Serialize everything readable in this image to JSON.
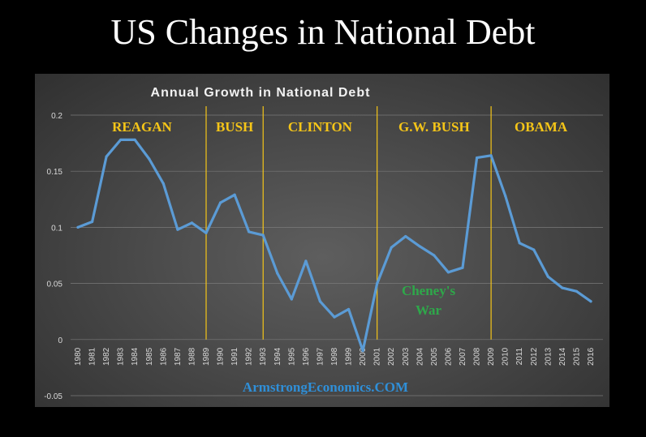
{
  "page": {
    "title": "US Changes in National Debt"
  },
  "chart_data": {
    "type": "line",
    "title": "Annual Growth in National Debt",
    "xlabel": "",
    "ylabel": "",
    "ylim": [
      -0.05,
      0.2
    ],
    "yticks": [
      "-0.05",
      "0",
      "0.05",
      "0.1",
      "0.15",
      "0.2"
    ],
    "x": [
      1980,
      1981,
      1982,
      1983,
      1984,
      1985,
      1986,
      1987,
      1988,
      1989,
      1990,
      1991,
      1992,
      1993,
      1994,
      1995,
      1996,
      1997,
      1998,
      1999,
      2000,
      2001,
      2002,
      2003,
      2004,
      2005,
      2006,
      2007,
      2008,
      2009,
      2010,
      2011,
      2012,
      2013,
      2014,
      2015,
      2016
    ],
    "x_labels": [
      "1980",
      "1981",
      "1982",
      "1983",
      "1984",
      "1985",
      "1986",
      "1987",
      "1988",
      "1989",
      "1990",
      "1991",
      "1992",
      "1993",
      "1994",
      "1995",
      "1996",
      "1997",
      "1998",
      "1999",
      "2000",
      "2001",
      "2002",
      "2003",
      "2004",
      "2005",
      "2006",
      "2007",
      "2008",
      "2009",
      "2010",
      "2011",
      "2012",
      "2013",
      "2014",
      "2015",
      "2016"
    ],
    "series": [
      {
        "values": [
          0.1,
          0.105,
          0.163,
          0.178,
          0.178,
          0.161,
          0.139,
          0.098,
          0.104,
          0.095,
          0.122,
          0.129,
          0.096,
          0.093,
          0.059,
          0.036,
          0.07,
          0.034,
          0.02,
          0.027,
          -0.01,
          0.05,
          0.082,
          0.092,
          0.083,
          0.075,
          0.06,
          0.064,
          0.162,
          0.164,
          0.128,
          0.086,
          0.08,
          0.056,
          0.046,
          0.043,
          0.034
        ],
        "color": "#5b9bd5"
      }
    ],
    "eras": [
      {
        "label": "REAGAN",
        "start": 1980,
        "end": 1989
      },
      {
        "label": "BUSH",
        "start": 1989,
        "end": 1993
      },
      {
        "label": "CLINTON",
        "start": 1993,
        "end": 2001
      },
      {
        "label": "G.W. BUSH",
        "start": 2001,
        "end": 2009
      },
      {
        "label": "OBAMA",
        "start": 2009,
        "end": 2016
      }
    ],
    "era_dividers": [
      1989,
      1993,
      2001,
      2009
    ],
    "annotation": {
      "line1": "Cheney's",
      "line2": "War"
    },
    "watermark": "ArmstrongEconomics.COM",
    "grid": true,
    "legend": "none"
  },
  "colors": {
    "line": "#5b9bd5",
    "era_label": "#f5c518",
    "divider": "#f5c518",
    "annotation": "#2ea84a",
    "watermark": "#2f8fd8",
    "gridline": "#7a7a7a"
  }
}
